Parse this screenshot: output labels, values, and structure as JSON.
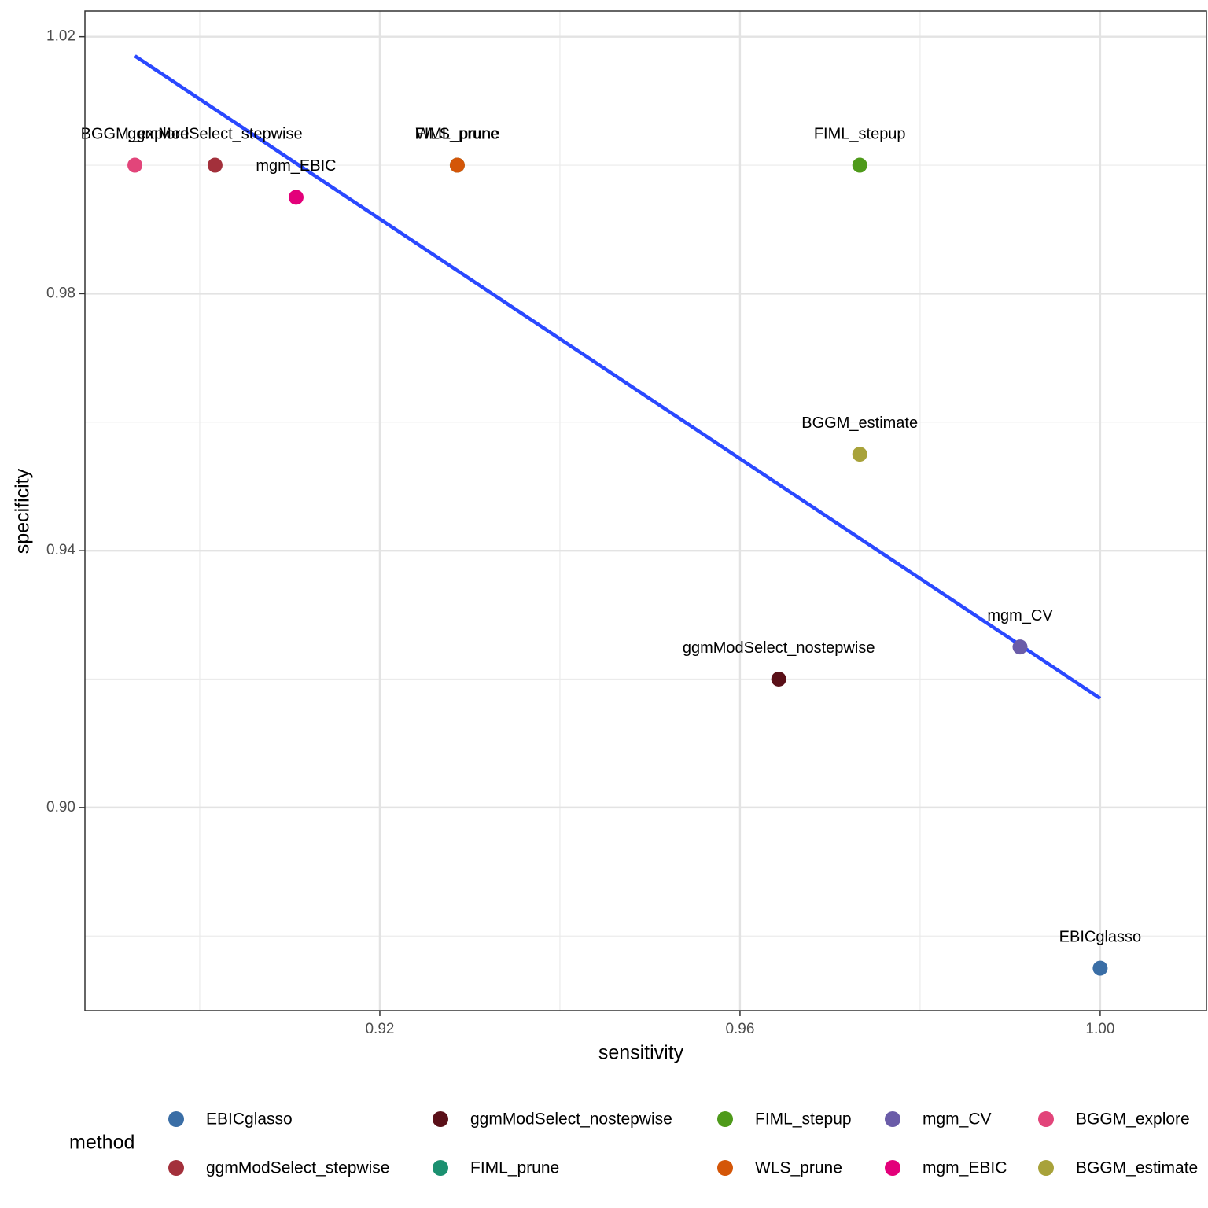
{
  "chart_data": {
    "type": "scatter",
    "x_label": "sensitivity",
    "y_label": "specificity",
    "legend_title": "method",
    "legend_position": "bottom",
    "xlim": [
      0.88725,
      1.0118
    ],
    "ylim": [
      0.8684,
      1.024
    ],
    "xticks": [
      0.92,
      0.96,
      {
        "value": 1.0,
        "label": "1.00"
      }
    ],
    "yticks": [
      {
        "value": 0.9,
        "label": "0.90"
      },
      0.94,
      0.98,
      1.02
    ],
    "x_minor_ticks": [
      0.9,
      0.94,
      0.98
    ],
    "y_minor_ticks": [
      0.88,
      0.92,
      0.96,
      1.0
    ],
    "grid": true,
    "series": [
      {
        "name": "EBICglasso",
        "color": "#3a6ea6",
        "x": [
          1.0
        ],
        "values": [
          0.875
        ]
      },
      {
        "name": "ggmModSelect_stepwise",
        "color": "#a3303b",
        "x": [
          0.9017
        ],
        "values": [
          1.0
        ]
      },
      {
        "name": "ggmModSelect_nostepwise",
        "color": "#5a1018",
        "x": [
          0.9643
        ],
        "values": [
          0.92
        ]
      },
      {
        "name": "FIML_prune",
        "color": "#1b9070",
        "x": [
          0.9286
        ],
        "values": [
          1.0
        ]
      },
      {
        "name": "FIML_stepup",
        "color": "#4e9a1a",
        "x": [
          0.9733
        ],
        "values": [
          1.0
        ]
      },
      {
        "name": "WLS_prune",
        "color": "#d45608",
        "x": [
          0.9286
        ],
        "values": [
          1.0
        ]
      },
      {
        "name": "mgm_CV",
        "color": "#6a5ca8",
        "x": [
          0.9911
        ],
        "values": [
          0.925
        ]
      },
      {
        "name": "mgm_EBIC",
        "color": "#e3007a",
        "x": [
          0.9107
        ],
        "values": [
          0.995
        ]
      },
      {
        "name": "BGGM_explore",
        "color": "#e2457a",
        "x": [
          0.8928
        ],
        "values": [
          1.0
        ]
      },
      {
        "name": "BGGM_estimate",
        "color": "#a8a23a",
        "x": [
          0.9733
        ],
        "values": [
          0.955
        ]
      }
    ],
    "trend": {
      "color": "#2a48ff",
      "x": [
        0.8928,
        1.0
      ],
      "values": [
        1.017,
        0.917
      ]
    }
  }
}
